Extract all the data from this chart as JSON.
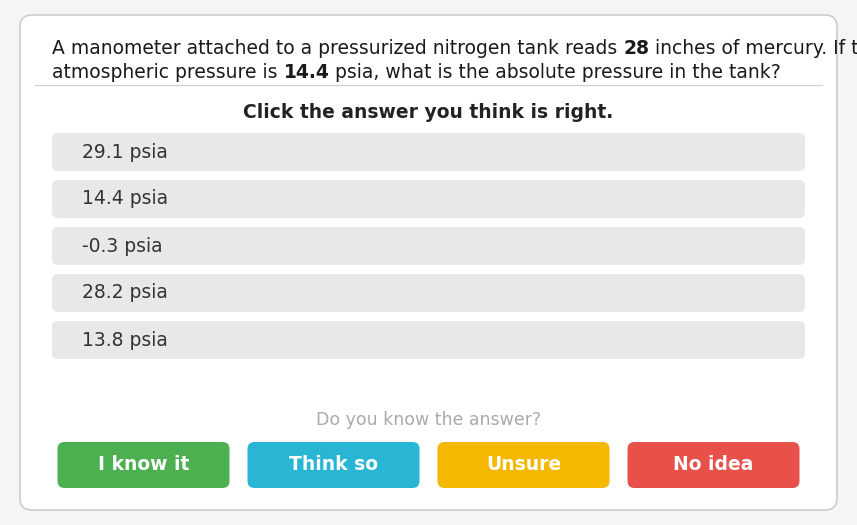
{
  "q_line1_parts": [
    {
      "text": "A manometer attached to a pressurized nitrogen tank reads ",
      "bold": false
    },
    {
      "text": "28",
      "bold": true
    },
    {
      "text": " inches of mercury. If the",
      "bold": false
    }
  ],
  "q_line2_parts": [
    {
      "text": "atmospheric pressure is ",
      "bold": false
    },
    {
      "text": "14.4",
      "bold": true
    },
    {
      "text": " psia, what is the absolute pressure in the tank?",
      "bold": false
    }
  ],
  "subtitle": "Click the answer you think is right.",
  "answers": [
    "29.1 psia",
    "14.4 psia",
    "-0.3 psia",
    "28.2 psia",
    "13.8 psia"
  ],
  "answer_bg": "#e8e8e8",
  "answer_text_color": "#333333",
  "footer_text": "Do you know the answer?",
  "footer_color": "#aaaaaa",
  "buttons": [
    "I know it",
    "Think so",
    "Unsure",
    "No idea"
  ],
  "button_colors": [
    "#4caf50",
    "#29b6d5",
    "#f5b800",
    "#e8514a"
  ],
  "button_text_color": "#ffffff",
  "bg_color": "#f5f5f5",
  "card_bg": "#ffffff",
  "border_color": "#cccccc",
  "title_fontsize": 13.5,
  "answer_fontsize": 13.5,
  "subtitle_fontsize": 13.5,
  "footer_fontsize": 12.5
}
